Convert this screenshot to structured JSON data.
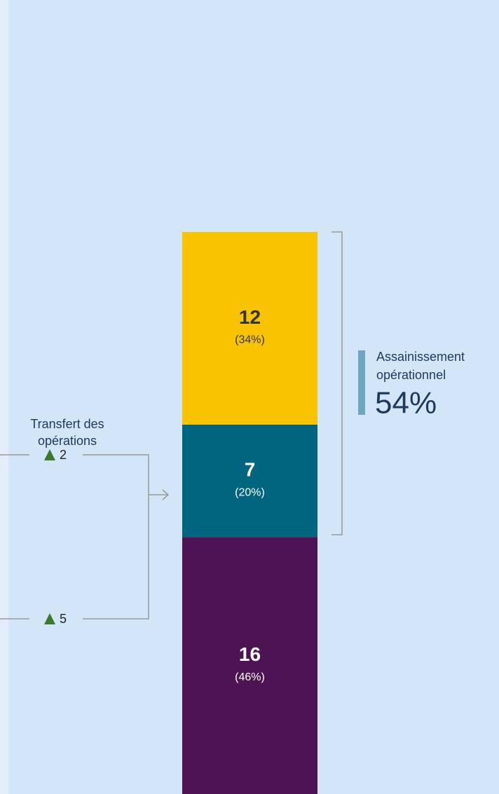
{
  "chart_data": {
    "type": "stacked_bar",
    "ylim": [
      0,
      35
    ],
    "series": [
      {
        "color": "#4e1352",
        "text_color": "#ffffff",
        "values": [
          16
        ],
        "share_labels": [
          "(46%)"
        ]
      },
      {
        "color": "#006680",
        "text_color": "#ffffff",
        "values": [
          7
        ],
        "share_labels": [
          "(20%)"
        ]
      },
      {
        "color": "#f8c300",
        "text_color": "#333333",
        "values": [
          12
        ],
        "share_labels": [
          "(34%)"
        ]
      }
    ],
    "transfer": {
      "label_lines": [
        "Transfert des",
        "opérations"
      ],
      "values": [
        2,
        5
      ],
      "marker_color": "#3a7a2e"
    },
    "bracket": {
      "label_lines": [
        "Assainissement",
        "opérationnel"
      ],
      "value_label": "54%",
      "color": "#6fa5bf"
    }
  }
}
